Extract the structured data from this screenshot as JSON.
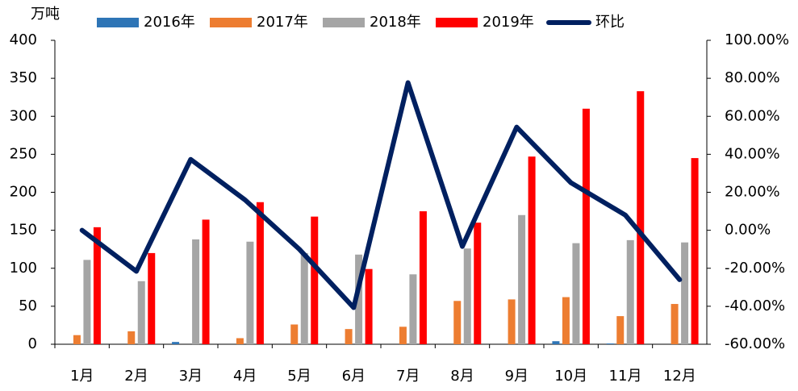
{
  "chart_data": {
    "type": "bar",
    "ylabel": "万吨",
    "categories": [
      "1月",
      "2月",
      "3月",
      "4月",
      "5月",
      "6月",
      "7月",
      "8月",
      "9月",
      "10月",
      "11月",
      "12月"
    ],
    "series": [
      {
        "name": "2016年",
        "color": "#2e75b6",
        "values": [
          0,
          0,
          3,
          0,
          0,
          0,
          0,
          0,
          0,
          4,
          1,
          0
        ]
      },
      {
        "name": "2017年",
        "color": "#ed7d31",
        "values": [
          12,
          17,
          0,
          8,
          26,
          20,
          23,
          57,
          59,
          62,
          37,
          53
        ]
      },
      {
        "name": "2018年",
        "color": "#a5a5a5",
        "values": [
          111,
          83,
          138,
          135,
          120,
          118,
          92,
          126,
          170,
          133,
          137,
          134
        ]
      },
      {
        "name": "2019年",
        "color": "#ff0000",
        "values": [
          154,
          120,
          164,
          187,
          168,
          99,
          175,
          160,
          247,
          310,
          333,
          245
        ]
      },
      {
        "name": "环比",
        "color": "#002060",
        "type": "line",
        "axis": "y2",
        "values": [
          0,
          -21.6,
          37.3,
          16,
          -10,
          -40.7,
          77.7,
          -8.5,
          54.3,
          25,
          8,
          -26
        ]
      }
    ],
    "ylim": [
      0,
      400
    ],
    "yticks": [
      0,
      50,
      100,
      150,
      200,
      250,
      300,
      350,
      400
    ],
    "y2lim": [
      -60,
      100
    ],
    "y2ticks": [
      {
        "value": -60,
        "label": "-60.00%"
      },
      {
        "value": -40,
        "label": "-40.00%"
      },
      {
        "value": -20,
        "label": "-20.00%"
      },
      {
        "value": 0,
        "label": "0.00%"
      },
      {
        "value": 20,
        "label": "20.00%"
      },
      {
        "value": 40,
        "label": "40.00%"
      },
      {
        "value": 60,
        "label": "60.00%"
      },
      {
        "value": 80,
        "label": "80.00%"
      },
      {
        "value": 100,
        "label": "100.00%"
      }
    ]
  }
}
